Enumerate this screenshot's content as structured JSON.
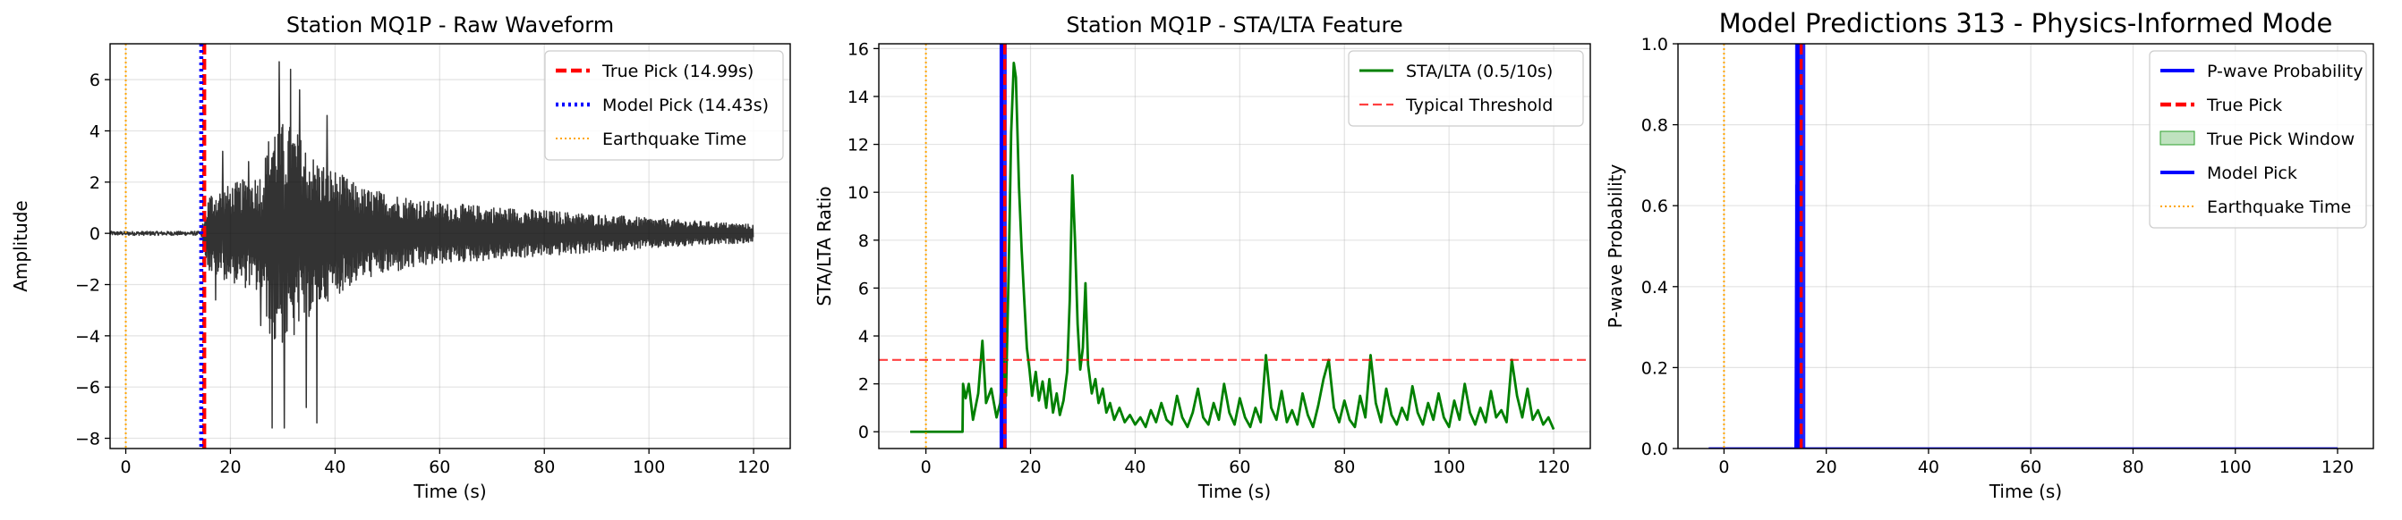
{
  "chart_data": [
    {
      "type": "line",
      "title": "Station MQ1P - Raw Waveform",
      "xlabel": "Time (s)",
      "ylabel": "Amplitude",
      "xlim": [
        -3,
        127
      ],
      "ylim": [
        -8.4,
        7.4
      ],
      "xticks": [
        0,
        20,
        40,
        60,
        80,
        100,
        120
      ],
      "yticks": [
        -8,
        -6,
        -4,
        -2,
        0,
        2,
        4,
        6
      ],
      "grid": true,
      "legend_position": "top-right",
      "series": [
        {
          "name": "",
          "color": "#000000",
          "signal": {
            "t_start": -3,
            "t_end": 120,
            "onset": 14.4,
            "noise_amplitude": 0.08,
            "envelope": [
              [
                -3,
                0.08
              ],
              [
                14.4,
                0.1
              ],
              [
                16,
                1.6
              ],
              [
                20,
                1.9
              ],
              [
                26,
                2.4
              ],
              [
                28,
                4.5
              ],
              [
                32,
                4.2
              ],
              [
                36,
                3.0
              ],
              [
                45,
                1.8
              ],
              [
                60,
                1.2
              ],
              [
                80,
                0.9
              ],
              [
                100,
                0.6
              ],
              [
                120,
                0.35
              ]
            ],
            "peaks": [
              [
                28,
                -7.6
              ],
              [
                29.3,
                6.7
              ],
              [
                30.3,
                -7.6
              ],
              [
                31.5,
                6.4
              ],
              [
                33.2,
                5.6
              ],
              [
                34.5,
                -6.8
              ],
              [
                36.5,
                -7.4
              ],
              [
                38.5,
                4.6
              ],
              [
                18.5,
                3.2
              ],
              [
                23.5,
                2.8
              ],
              [
                25.8,
                -3.6
              ],
              [
                17.2,
                -2.6
              ]
            ]
          }
        }
      ],
      "vlines": [
        {
          "name": "True Pick (14.99s)",
          "x": 14.99,
          "color": "#ff0000",
          "style": "dashed"
        },
        {
          "name": "Model Pick (14.43s)",
          "x": 14.43,
          "color": "#0000ff",
          "style": "dotted"
        },
        {
          "name": "Earthquake Time",
          "x": 0,
          "color": "#ffa500",
          "style": "dotted"
        }
      ]
    },
    {
      "type": "line",
      "title": "Station MQ1P - STA/LTA Feature",
      "xlabel": "Time (s)",
      "ylabel": "STA/LTA Ratio",
      "xlim": [
        -9,
        127
      ],
      "ylim": [
        -0.7,
        16.2
      ],
      "xticks": [
        0,
        20,
        40,
        60,
        80,
        100,
        120
      ],
      "yticks": [
        0,
        2,
        4,
        6,
        8,
        10,
        12,
        14,
        16
      ],
      "grid": true,
      "legend_position": "top-right",
      "series": [
        {
          "name": "STA/LTA (0.5/10s)",
          "color": "#008000",
          "points": [
            [
              -3,
              0
            ],
            [
              7,
              0
            ],
            [
              7.1,
              2.0
            ],
            [
              7.6,
              1.4
            ],
            [
              8.2,
              2.0
            ],
            [
              9,
              0.5
            ],
            [
              10,
              1.6
            ],
            [
              10.8,
              3.8
            ],
            [
              11.5,
              1.2
            ],
            [
              12.5,
              1.8
            ],
            [
              13.5,
              0.6
            ],
            [
              14.2,
              1.2
            ],
            [
              14.8,
              3.2
            ],
            [
              15.3,
              1.5
            ],
            [
              15.8,
              6.5
            ],
            [
              16.3,
              12.5
            ],
            [
              16.8,
              15.4
            ],
            [
              17.2,
              14.8
            ],
            [
              17.8,
              10.2
            ],
            [
              18.3,
              7.6
            ],
            [
              18.8,
              5.5
            ],
            [
              19.3,
              3.5
            ],
            [
              19.8,
              2.6
            ],
            [
              20.3,
              1.5
            ],
            [
              21,
              2.5
            ],
            [
              21.6,
              1.3
            ],
            [
              22.3,
              2.1
            ],
            [
              23,
              1.0
            ],
            [
              23.6,
              2.2
            ],
            [
              24.3,
              0.8
            ],
            [
              25,
              1.6
            ],
            [
              25.6,
              0.7
            ],
            [
              26.3,
              1.3
            ],
            [
              27,
              2.5
            ],
            [
              27.5,
              5.5
            ],
            [
              28,
              10.7
            ],
            [
              28.5,
              8.0
            ],
            [
              29,
              4.5
            ],
            [
              29.5,
              2.6
            ],
            [
              30,
              3.5
            ],
            [
              30.5,
              6.2
            ],
            [
              31,
              2.8
            ],
            [
              31.7,
              1.6
            ],
            [
              32.4,
              2.2
            ],
            [
              33,
              1.2
            ],
            [
              33.8,
              1.8
            ],
            [
              34.5,
              0.8
            ],
            [
              35.2,
              1.2
            ],
            [
              36,
              0.5
            ],
            [
              37,
              1.0
            ],
            [
              38,
              0.4
            ],
            [
              39,
              0.7
            ],
            [
              40,
              0.3
            ],
            [
              41,
              0.6
            ],
            [
              42,
              0.2
            ],
            [
              43,
              0.9
            ],
            [
              44,
              0.4
            ],
            [
              45,
              1.2
            ],
            [
              46,
              0.5
            ],
            [
              47,
              0.3
            ],
            [
              48,
              1.5
            ],
            [
              49,
              0.6
            ],
            [
              50,
              0.2
            ],
            [
              51,
              0.8
            ],
            [
              52,
              1.8
            ],
            [
              53,
              0.6
            ],
            [
              54,
              0.3
            ],
            [
              55,
              1.2
            ],
            [
              56,
              0.5
            ],
            [
              57,
              2.0
            ],
            [
              58,
              0.8
            ],
            [
              59,
              0.3
            ],
            [
              60,
              1.4
            ],
            [
              61,
              0.6
            ],
            [
              62,
              0.2
            ],
            [
              63,
              1.0
            ],
            [
              64,
              0.4
            ],
            [
              65,
              3.2
            ],
            [
              66,
              1.0
            ],
            [
              67,
              0.5
            ],
            [
              68,
              1.7
            ],
            [
              69,
              0.4
            ],
            [
              70,
              0.9
            ],
            [
              71,
              0.3
            ],
            [
              72,
              1.6
            ],
            [
              73,
              0.7
            ],
            [
              74,
              0.2
            ],
            [
              75,
              1.1
            ],
            [
              76,
              2.2
            ],
            [
              77,
              3.0
            ],
            [
              78,
              1.0
            ],
            [
              79,
              0.4
            ],
            [
              80,
              1.3
            ],
            [
              81,
              0.5
            ],
            [
              82,
              0.2
            ],
            [
              83,
              1.5
            ],
            [
              84,
              0.6
            ],
            [
              85,
              3.2
            ],
            [
              86,
              1.2
            ],
            [
              87,
              0.4
            ],
            [
              88,
              1.8
            ],
            [
              89,
              0.7
            ],
            [
              90,
              0.3
            ],
            [
              91,
              1.0
            ],
            [
              92,
              0.5
            ],
            [
              93,
              1.9
            ],
            [
              94,
              0.8
            ],
            [
              95,
              0.3
            ],
            [
              96,
              1.2
            ],
            [
              97,
              0.5
            ],
            [
              98,
              1.6
            ],
            [
              99,
              0.6
            ],
            [
              100,
              0.2
            ],
            [
              101,
              1.3
            ],
            [
              102,
              0.5
            ],
            [
              103,
              2.0
            ],
            [
              104,
              0.8
            ],
            [
              105,
              0.3
            ],
            [
              106,
              1.0
            ],
            [
              107,
              0.4
            ],
            [
              108,
              1.7
            ],
            [
              109,
              0.6
            ],
            [
              110,
              0.9
            ],
            [
              111,
              0.4
            ],
            [
              112,
              3.0
            ],
            [
              113,
              1.5
            ],
            [
              114,
              0.6
            ],
            [
              115,
              1.8
            ],
            [
              116,
              0.5
            ],
            [
              117,
              0.9
            ],
            [
              118,
              0.3
            ],
            [
              119,
              0.6
            ],
            [
              120,
              0.1
            ]
          ]
        }
      ],
      "hlines": [
        {
          "name": "Typical Threshold",
          "y": 3,
          "color": "#ff0000",
          "style": "dashed"
        }
      ],
      "vlines": [
        {
          "name": "",
          "x": 14.99,
          "color": "#ff0000",
          "style": "dashed"
        },
        {
          "name": "",
          "x": 14.43,
          "color": "#0000ff",
          "style": "solid"
        },
        {
          "name": "",
          "x": 0,
          "color": "#ffa500",
          "style": "dotted"
        }
      ],
      "spans": [
        {
          "name": "",
          "x0": 14.25,
          "x1": 15.45,
          "color": "#0000ff"
        }
      ]
    },
    {
      "type": "line",
      "title": "Model Predictions 313 - Physics-Informed Mode",
      "xlabel": "Time (s)",
      "ylabel": "P-wave Probability",
      "xlim": [
        -9,
        127
      ],
      "ylim": [
        0,
        1
      ],
      "xticks": [
        0,
        20,
        40,
        60,
        80,
        100,
        120
      ],
      "yticks": [
        0.0,
        0.2,
        0.4,
        0.6,
        0.8,
        1.0
      ],
      "grid": true,
      "legend_position": "top-right",
      "series": [
        {
          "name": "P-wave Probability",
          "color": "#0000ff",
          "points": [
            [
              -3,
              0
            ],
            [
              14.0,
              0
            ],
            [
              14.1,
              0.35
            ],
            [
              14.2,
              0.65
            ],
            [
              14.3,
              0.2
            ],
            [
              14.4,
              0.0
            ],
            [
              120,
              0
            ]
          ]
        }
      ],
      "vlines": [
        {
          "name": "True Pick",
          "x": 14.99,
          "color": "#ff0000",
          "style": "dashed"
        },
        {
          "name": "Model Pick",
          "x": 14.43,
          "color": "#0000ff",
          "style": "solid"
        },
        {
          "name": "Earthquake Time",
          "x": 0,
          "color": "#ffa500",
          "style": "dotted"
        }
      ],
      "spans": [
        {
          "name": "True Pick Window",
          "x0": 14.49,
          "x1": 15.49,
          "color": "#2ca02c"
        },
        {
          "name": "",
          "x0": 13.9,
          "x1": 15.9,
          "color": "#0000ff"
        }
      ]
    }
  ]
}
